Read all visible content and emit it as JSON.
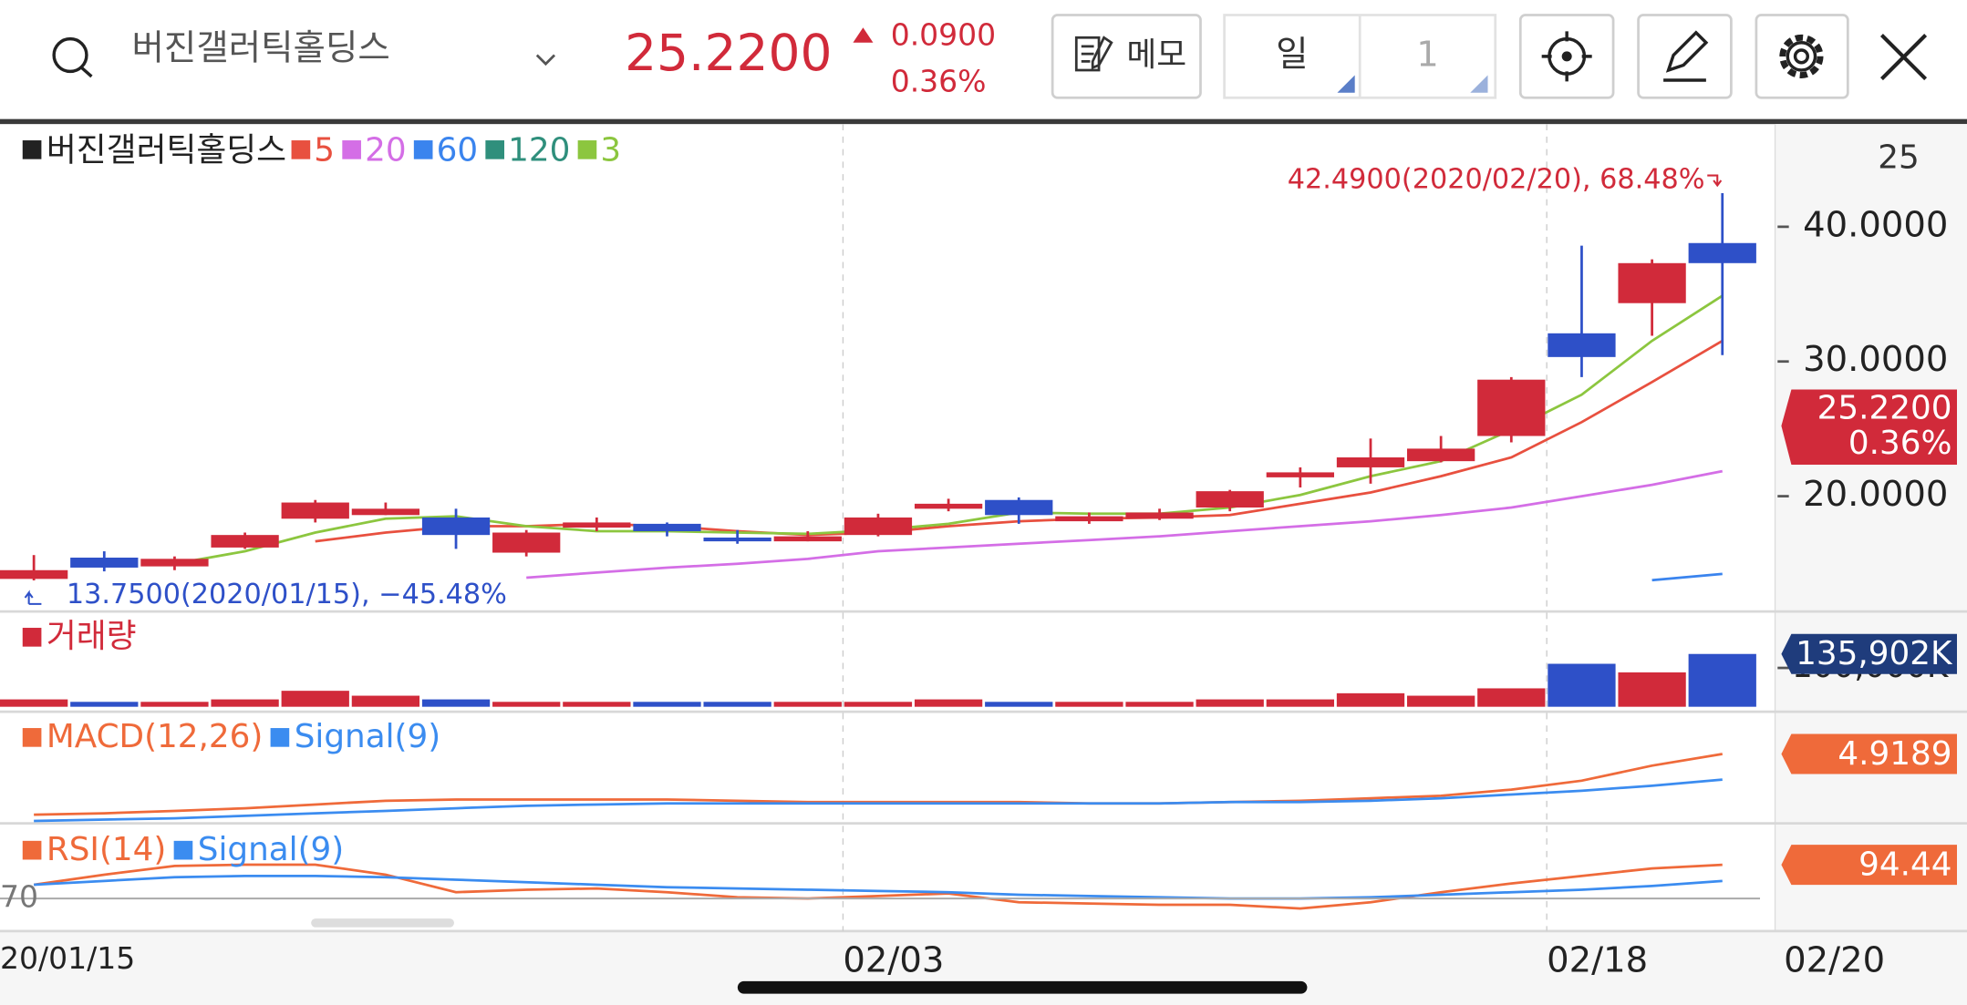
{
  "header": {
    "stock_name": "버진갤러틱홀딩스",
    "price": "25.2200",
    "change": "0.0900",
    "change_percent": "0.36%",
    "memo_button": "메모",
    "period": "일",
    "period_count": "1"
  },
  "chart_data": {
    "type": "candlestick",
    "legend_name": "버진갤러틱홀딩스",
    "corner_label": "25",
    "up_color": "#d12a3a",
    "down_color": "#2e50c8",
    "price": {
      "open": [
        13.86,
        15.44,
        14.79,
        16.19,
        18.33,
        18.6,
        18.42,
        15.81,
        17.67,
        17.95,
        16.93,
        16.65,
        17.12,
        19.07,
        19.72,
        18.14,
        18.33,
        19.16,
        21.4,
        22.14,
        22.6,
        24.47,
        32.09,
        34.33,
        38.79
      ],
      "high": [
        15.63,
        15.91,
        15.53,
        17.3,
        19.72,
        19.53,
        19.07,
        17.49,
        18.42,
        18.05,
        17.49,
        17.4,
        18.7,
        19.81,
        19.91,
        18.79,
        19.07,
        20.47,
        22.14,
        24.28,
        24.47,
        28.84,
        38.6,
        37.58,
        42.49
      ],
      "low": [
        13.75,
        14.42,
        14.51,
        16.09,
        18.05,
        18.6,
        16.09,
        15.53,
        17.4,
        17.02,
        16.47,
        16.65,
        17.02,
        18.88,
        17.95,
        17.95,
        18.23,
        18.88,
        20.65,
        20.93,
        22.51,
        24.0,
        28.84,
        31.91,
        30.47
      ],
      "close": [
        14.51,
        14.7,
        15.35,
        17.12,
        19.53,
        19.07,
        17.12,
        17.3,
        18.05,
        17.4,
        16.65,
        17.02,
        18.42,
        19.44,
        18.6,
        18.51,
        18.79,
        20.37,
        21.77,
        22.88,
        23.53,
        28.65,
        30.33,
        37.3,
        37.3
      ],
      "ylim": [
        11.44,
        47.53
      ],
      "yticks": [
        {
          "value": 40,
          "label": "40.0000"
        },
        {
          "value": 30,
          "label": "30.0000"
        },
        {
          "value": 20,
          "label": "20.0000"
        }
      ]
    },
    "moving_averages": [
      {
        "name": "5",
        "color": "#e8503f",
        "values": [
          null,
          null,
          null,
          null,
          16.65,
          17.3,
          17.77,
          17.77,
          17.95,
          17.77,
          17.4,
          17.12,
          17.3,
          17.77,
          18.14,
          18.33,
          18.42,
          18.6,
          19.44,
          20.28,
          21.49,
          22.88,
          25.49,
          28.47,
          31.53
        ]
      },
      {
        "name": "20",
        "color": "#d46ee6",
        "values": [
          null,
          null,
          null,
          null,
          null,
          null,
          null,
          13.95,
          14.33,
          14.7,
          14.98,
          15.35,
          15.91,
          16.19,
          16.47,
          16.74,
          17.02,
          17.4,
          17.77,
          18.14,
          18.6,
          19.16,
          20.0,
          20.84,
          21.86
        ]
      },
      {
        "name": "60",
        "color": "#3a84ee",
        "values": [
          null,
          null,
          null,
          null,
          null,
          null,
          null,
          null,
          null,
          null,
          null,
          null,
          null,
          null,
          null,
          null,
          null,
          null,
          null,
          null,
          null,
          null,
          null,
          13.77,
          14.23
        ]
      },
      {
        "name": "120",
        "color": "#2f8f7c"
      },
      {
        "name": "3",
        "color": "#8cc63f",
        "values": [
          null,
          null,
          14.98,
          15.91,
          17.3,
          18.33,
          18.51,
          17.77,
          17.4,
          17.4,
          17.3,
          17.21,
          17.49,
          17.95,
          18.79,
          18.7,
          18.7,
          19.16,
          20.09,
          21.49,
          22.6,
          24.93,
          27.53,
          31.53,
          34.88
        ]
      }
    ],
    "high_annotation": "42.4900(2020/02/20), 68.48%",
    "low_annotation": "13.7500(2020/01/15), −45.48%",
    "volume": {
      "name": "거래량",
      "values": [
        18963,
        12642,
        12642,
        18963,
        41087,
        28445,
        18963,
        12642,
        12642,
        12642,
        12642,
        12642,
        12642,
        18963,
        12642,
        12642,
        12642,
        18963,
        18963,
        34766,
        28445,
        47408,
        110618,
        88494,
        135902
      ],
      "last_label": "135,902K",
      "ylim": [
        0,
        140000
      ],
      "yticks": [
        {
          "value": 100000,
          "label": "100,000K"
        }
      ]
    },
    "macd": {
      "series": [
        {
          "name": "MACD(12,26)",
          "color": "#ef6a3a",
          "values": [
            -0.57,
            -0.45,
            -0.23,
            0,
            0.34,
            0.68,
            0.8,
            0.8,
            0.8,
            0.8,
            0.68,
            0.57,
            0.57,
            0.57,
            0.57,
            0.45,
            0.45,
            0.57,
            0.68,
            0.91,
            1.14,
            1.7,
            2.5,
            3.86,
            4.9189
          ]
        },
        {
          "name": "Signal(9)",
          "color": "#3b8cf0",
          "values": [
            -1.14,
            -1.02,
            -0.91,
            -0.68,
            -0.45,
            -0.23,
            0,
            0.23,
            0.34,
            0.45,
            0.45,
            0.45,
            0.45,
            0.45,
            0.45,
            0.45,
            0.45,
            0.57,
            0.57,
            0.68,
            0.91,
            1.25,
            1.59,
            2.05,
            2.61
          ]
        }
      ],
      "ylim": [
        -1.7,
        6.25
      ]
    },
    "rsi": {
      "series": [
        {
          "name": "RSI(14)",
          "color": "#ef6a3a",
          "values": [
            80,
            87.27,
            93.64,
            94.55,
            94.55,
            87.27,
            74.55,
            76.36,
            77.27,
            74.55,
            70.91,
            70,
            71.82,
            73.64,
            67.27,
            66.36,
            65.45,
            65.45,
            62.73,
            67.27,
            74.55,
            80.91,
            86.36,
            91.82,
            94.44
          ]
        },
        {
          "name": "Signal(9)",
          "color": "#3b8cf0",
          "values": [
            80,
            82.73,
            85.45,
            86.36,
            86.36,
            85.45,
            83.64,
            81.82,
            80,
            78.18,
            77.27,
            76.36,
            75.45,
            74.55,
            72.73,
            71.82,
            70.91,
            70,
            70,
            70.91,
            72.73,
            74.55,
            76.36,
            79.09,
            82.73
          ]
        }
      ],
      "ylim": [
        50,
        120
      ],
      "yticks": [
        70
      ]
    },
    "x_labels": [
      "20/01/15",
      "02/03",
      "02/18",
      "02/20"
    ]
  }
}
